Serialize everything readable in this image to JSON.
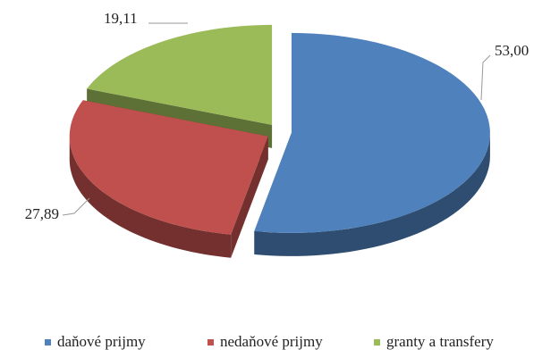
{
  "chart_data": {
    "type": "pie",
    "categories": [
      "daňové prijmy",
      "nedaňové prijmy",
      "granty a transfery"
    ],
    "values": [
      53.0,
      27.89,
      19.11
    ],
    "value_labels": [
      "53,00",
      "27,89",
      "19,11"
    ],
    "colors": [
      "#4f81bd",
      "#c0504d",
      "#9bbb59"
    ],
    "legend": "bottom"
  }
}
